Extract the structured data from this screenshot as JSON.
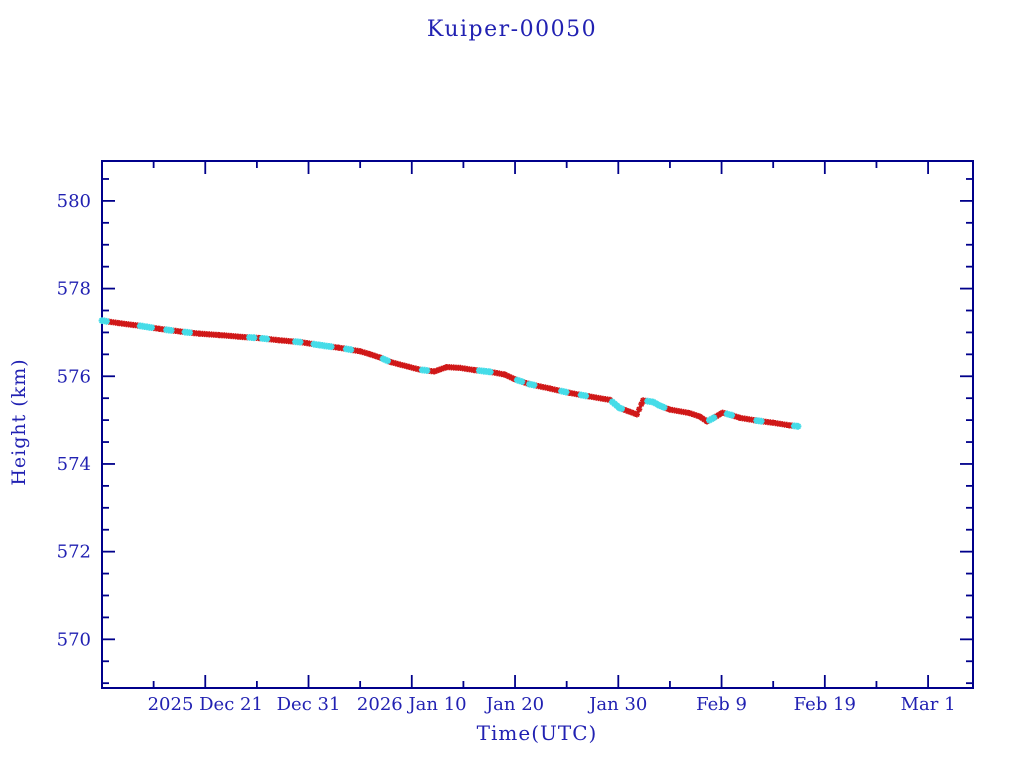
{
  "colors": {
    "background": "#ffffff",
    "axis": "#00008b",
    "text": "#2121b2",
    "marker_red": "#d01818",
    "marker_cyan": "#45dce8",
    "line_blue": "#2222aa"
  },
  "chart_data": {
    "type": "line",
    "title": "Kuiper-00050",
    "xlabel": "Time(UTC)",
    "ylabel": "Height (km)",
    "legend": "none",
    "grid": "off",
    "x_axis": {
      "unit": "days from left edge (left edge = 2025 Dec 11)",
      "min_day": 0,
      "max_day": 84.35,
      "major_ticks": [
        {
          "day": 10,
          "label": "2025 Dec 21"
        },
        {
          "day": 20,
          "label": "Dec 31"
        },
        {
          "day": 30,
          "label": "2026 Jan 10"
        },
        {
          "day": 40,
          "label": "Jan 20"
        },
        {
          "day": 50,
          "label": "Jan 30"
        },
        {
          "day": 60,
          "label": "Feb 9"
        },
        {
          "day": 70,
          "label": "Feb 19"
        },
        {
          "day": 80,
          "label": "Mar 1"
        }
      ],
      "minor_tick_interval_days": 5
    },
    "y_axis": {
      "min": 568.89,
      "max": 580.91,
      "major_ticks": [
        570,
        572,
        574,
        576,
        578,
        580
      ],
      "minor_tick_interval": 0.5
    },
    "series": [
      {
        "name": "satellite-height",
        "style": "dense asterisk markers (red with intermittent cyan runs) over thin dark-blue line",
        "marker": "asterisk",
        "marker_step_days": 0.22,
        "points": [
          [
            0.0,
            577.27
          ],
          [
            1.7,
            577.21
          ],
          [
            3.7,
            577.15
          ],
          [
            5.6,
            577.08
          ],
          [
            7.6,
            577.02
          ],
          [
            9.5,
            576.97
          ],
          [
            11.4,
            576.94
          ],
          [
            13.4,
            576.9
          ],
          [
            15.3,
            576.87
          ],
          [
            17.2,
            576.82
          ],
          [
            19.2,
            576.78
          ],
          [
            21.1,
            576.71
          ],
          [
            23.0,
            576.65
          ],
          [
            25.0,
            576.57
          ],
          [
            26.0,
            576.5
          ],
          [
            27.0,
            576.42
          ],
          [
            28.0,
            576.32
          ],
          [
            29.3,
            576.24
          ],
          [
            30.8,
            576.15
          ],
          [
            32.2,
            576.11
          ],
          [
            33.4,
            576.21
          ],
          [
            34.7,
            576.19
          ],
          [
            36.1,
            576.14
          ],
          [
            37.6,
            576.1
          ],
          [
            39.0,
            576.04
          ],
          [
            40.0,
            575.93
          ],
          [
            41.4,
            575.82
          ],
          [
            43.4,
            575.72
          ],
          [
            45.3,
            575.62
          ],
          [
            47.2,
            575.54
          ],
          [
            49.2,
            575.46
          ],
          [
            50.1,
            575.28
          ],
          [
            51.0,
            575.2
          ],
          [
            51.8,
            575.13
          ],
          [
            52.4,
            575.45
          ],
          [
            53.4,
            575.41
          ],
          [
            54.0,
            575.33
          ],
          [
            55.0,
            575.24
          ],
          [
            56.9,
            575.16
          ],
          [
            57.9,
            575.08
          ],
          [
            58.6,
            574.97
          ],
          [
            59.3,
            575.06
          ],
          [
            60.1,
            575.17
          ],
          [
            61.0,
            575.11
          ],
          [
            61.8,
            575.05
          ],
          [
            63.4,
            574.99
          ],
          [
            65.0,
            574.94
          ],
          [
            66.6,
            574.88
          ],
          [
            67.4,
            574.86
          ]
        ]
      }
    ]
  }
}
